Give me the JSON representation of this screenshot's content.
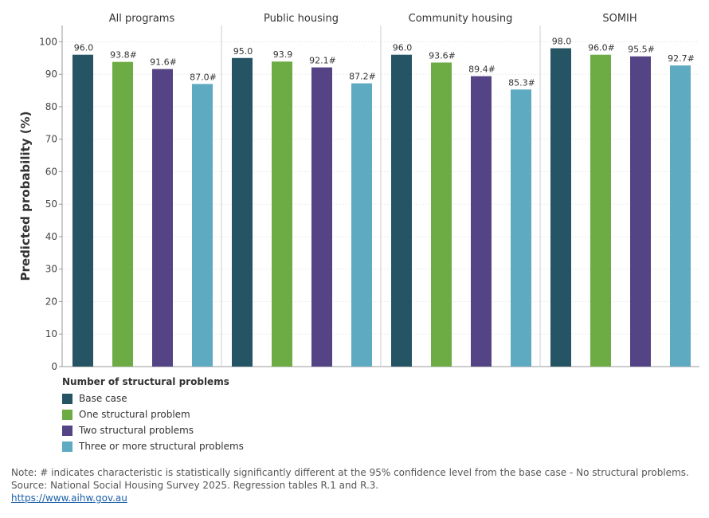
{
  "chart_data": {
    "type": "bar",
    "ylabel": "Predicted probability (%)",
    "ylim": [
      0,
      105
    ],
    "yticks": [
      0,
      10,
      20,
      30,
      40,
      50,
      60,
      70,
      80,
      90,
      100
    ],
    "grid": true,
    "panels": [
      {
        "name": "All programs",
        "values": [
          96.0,
          93.8,
          91.6,
          87.0
        ],
        "labels": [
          "96.0",
          "93.8#",
          "91.6#",
          "87.0#"
        ]
      },
      {
        "name": "Public housing",
        "values": [
          95.0,
          93.9,
          92.1,
          87.2
        ],
        "labels": [
          "95.0",
          "93.9",
          "92.1#",
          "87.2#"
        ]
      },
      {
        "name": "Community housing",
        "values": [
          96.0,
          93.6,
          89.4,
          85.3
        ],
        "labels": [
          "96.0",
          "93.6#",
          "89.4#",
          "85.3#"
        ]
      },
      {
        "name": "SOMIH",
        "values": [
          98.0,
          96.0,
          95.5,
          92.7
        ],
        "labels": [
          "98.0",
          "96.0#",
          "95.5#",
          "92.7#"
        ]
      }
    ],
    "series": [
      {
        "name": "Base case",
        "color": "#255564"
      },
      {
        "name": "One structural problem",
        "color": "#6DAC45"
      },
      {
        "name": "Two structural problems",
        "color": "#544485"
      },
      {
        "name": "Three or more structural problems",
        "color": "#5EAAC1"
      }
    ],
    "legend": {
      "title": "Number of structural problems",
      "placement": "bottom-left"
    }
  },
  "notes": {
    "note": "Note: # indicates characteristic is statistically significantly different at the 95% confidence level from the base case - No structural problems.",
    "source": "Source: National Social Housing Survey 2025. Regression tables R.1 and R.3.",
    "link": "https://www.aihw.gov.au"
  }
}
